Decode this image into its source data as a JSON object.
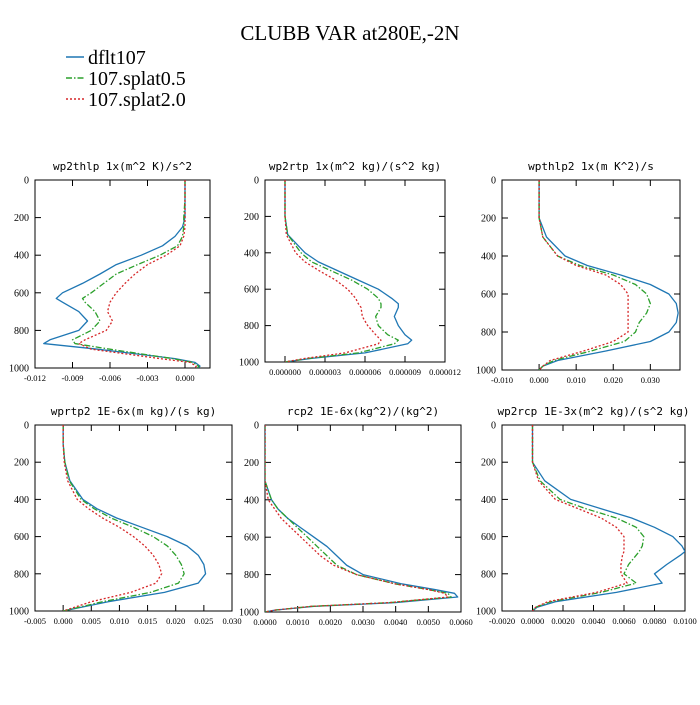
{
  "title": "CLUBB VAR at280E,-2N",
  "legend": [
    {
      "name": "dflt107",
      "color": "#1f77b4",
      "dash": "solid"
    },
    {
      "name": "107.splat0.5",
      "color": "#2ca02c",
      "dash": "dashdot"
    },
    {
      "name": "107.splat2.0",
      "color": "#d62728",
      "dash": "dotted"
    }
  ],
  "chart_data": [
    {
      "type": "line",
      "title": "wp2thlp  1x(m^2 K)/s^2",
      "xlim": [
        -0.012,
        0.002
      ],
      "ylim": [
        1000,
        0
      ],
      "xticks": [
        -0.012,
        -0.009,
        -0.006,
        -0.003,
        0.0
      ],
      "xtick_labels": [
        "-0.012",
        "-0.009",
        "-0.006",
        "-0.003",
        "0.000"
      ],
      "yticks": [
        0,
        200,
        400,
        600,
        800,
        1000
      ],
      "y": [
        0,
        100,
        200,
        250,
        300,
        350,
        400,
        450,
        500,
        550,
        600,
        630,
        650,
        700,
        750,
        800,
        850,
        870,
        900,
        950,
        970,
        990,
        1000
      ],
      "series": [
        {
          "name": "dflt107",
          "values": [
            0.0,
            0.0,
            0.0,
            -0.0002,
            -0.0008,
            -0.0018,
            -0.0035,
            -0.0055,
            -0.0068,
            -0.0082,
            -0.0098,
            -0.0103,
            -0.0098,
            -0.0085,
            -0.0078,
            -0.0085,
            -0.0108,
            -0.0113,
            -0.007,
            -0.0008,
            0.0008,
            0.0012,
            0.001
          ]
        },
        {
          "name": "107.splat0.5",
          "values": [
            0.0,
            0.0,
            -0.0001,
            -0.0001,
            -0.0002,
            -0.0006,
            -0.002,
            -0.0038,
            -0.0055,
            -0.0065,
            -0.0075,
            -0.0082,
            -0.008,
            -0.0072,
            -0.0068,
            -0.0075,
            -0.009,
            -0.0088,
            -0.006,
            -0.001,
            0.0006,
            0.0011,
            0.001
          ]
        },
        {
          "name": "107.splat2.0",
          "values": [
            0.0,
            0.0,
            0.0,
            0.0,
            -0.0001,
            -0.0004,
            -0.0015,
            -0.003,
            -0.004,
            -0.0048,
            -0.0055,
            -0.0058,
            -0.006,
            -0.0062,
            -0.0058,
            -0.0063,
            -0.008,
            -0.0085,
            -0.0075,
            -0.002,
            0.0004,
            0.0009,
            0.0008
          ]
        }
      ]
    },
    {
      "type": "line",
      "title": "wp2rtp  1x(m^2 kg)/(s^2 kg)",
      "xlim": [
        -1.5e-06,
        1.2e-05
      ],
      "ylim": [
        1000,
        0
      ],
      "xticks": [
        0.0,
        3e-06,
        6e-06,
        9e-06,
        1.2e-05
      ],
      "xtick_labels": [
        "0.000000",
        "0.000003",
        "0.000006",
        "0.000009",
        "0.000012"
      ],
      "yticks": [
        0,
        200,
        400,
        600,
        800,
        1000
      ],
      "y": [
        0,
        100,
        200,
        300,
        400,
        450,
        500,
        550,
        600,
        650,
        680,
        700,
        750,
        800,
        850,
        880,
        900,
        950,
        980,
        1000
      ],
      "series": [
        {
          "name": "dflt107",
          "values": [
            0.0,
            0.0,
            0.0,
            2e-07,
            1.5e-06,
            2.5e-06,
            4e-06,
            5.5e-06,
            7e-06,
            8e-06,
            8.5e-06,
            8.5e-06,
            8.2e-06,
            8.5e-06,
            9e-06,
            9.5e-06,
            9.2e-06,
            6e-06,
            2e-06,
            0.0
          ]
        },
        {
          "name": "107.splat0.5",
          "values": [
            0.0,
            0.0,
            0.0,
            2e-07,
            1.2e-06,
            2e-06,
            3.5e-06,
            5e-06,
            6.2e-06,
            7e-06,
            7.2e-06,
            7.2e-06,
            6.8e-06,
            7e-06,
            7.7e-06,
            8.5e-06,
            8.2e-06,
            5.5e-06,
            1.8e-06,
            0.0
          ]
        },
        {
          "name": "107.splat2.0",
          "values": [
            0.0,
            0.0,
            0.0,
            1e-07,
            8e-07,
            1.5e-06,
            2.6e-06,
            3.8e-06,
            4.7e-06,
            5.3e-06,
            5.5e-06,
            5.7e-06,
            5.8e-06,
            6.2e-06,
            6.8e-06,
            7.2e-06,
            7e-06,
            4.5e-06,
            1.5e-06,
            0.0
          ]
        }
      ]
    },
    {
      "type": "line",
      "title": "wpthlp2  1x(m K^2)/s",
      "xlim": [
        -0.01,
        0.038
      ],
      "ylim": [
        1000,
        0
      ],
      "xticks": [
        -0.01,
        0.0,
        0.01,
        0.02,
        0.03
      ],
      "xtick_labels": [
        "-0.010",
        "0.000",
        "0.010",
        "0.020",
        "0.030"
      ],
      "yticks": [
        0,
        200,
        400,
        600,
        800,
        1000
      ],
      "y": [
        0,
        100,
        200,
        300,
        400,
        450,
        500,
        550,
        600,
        650,
        700,
        750,
        800,
        850,
        900,
        950,
        980,
        1000
      ],
      "series": [
        {
          "name": "dflt107",
          "values": [
            0.0,
            0.0,
            0.0,
            0.002,
            0.007,
            0.013,
            0.022,
            0.03,
            0.035,
            0.037,
            0.0375,
            0.037,
            0.035,
            0.03,
            0.018,
            0.005,
            0.001,
            0.0
          ]
        },
        {
          "name": "107.splat0.5",
          "values": [
            0.0,
            0.0,
            0.0,
            0.001,
            0.005,
            0.011,
            0.02,
            0.026,
            0.029,
            0.03,
            0.029,
            0.027,
            0.026,
            0.023,
            0.014,
            0.004,
            0.001,
            0.0
          ]
        },
        {
          "name": "107.splat2.0",
          "values": [
            0.0,
            0.0,
            0.0,
            0.001,
            0.005,
            0.01,
            0.018,
            0.022,
            0.024,
            0.024,
            0.024,
            0.024,
            0.024,
            0.02,
            0.012,
            0.003,
            0.001,
            0.0
          ]
        }
      ]
    },
    {
      "type": "line",
      "title": "wprtp2  1E-6x(m kg)/(s kg)",
      "xlim": [
        -0.005,
        0.03
      ],
      "ylim": [
        1000,
        0
      ],
      "xticks": [
        -0.005,
        0.0,
        0.005,
        0.01,
        0.015,
        0.02,
        0.025,
        0.03
      ],
      "xtick_labels": [
        "-0.005",
        "0.000",
        "0.005",
        "0.010",
        "0.015",
        "0.020",
        "0.025",
        "0.030"
      ],
      "yticks": [
        0,
        200,
        400,
        600,
        800,
        1000
      ],
      "y": [
        0,
        100,
        200,
        300,
        400,
        450,
        500,
        550,
        600,
        650,
        700,
        750,
        800,
        850,
        900,
        950,
        1000
      ],
      "series": [
        {
          "name": "dflt107",
          "values": [
            0.0,
            0.0,
            0.0003,
            0.0012,
            0.0035,
            0.006,
            0.0095,
            0.014,
            0.0185,
            0.022,
            0.024,
            0.025,
            0.0253,
            0.024,
            0.018,
            0.008,
            0.0
          ]
        },
        {
          "name": "107.splat0.5",
          "values": [
            0.0,
            0.0,
            0.0003,
            0.0011,
            0.0032,
            0.0055,
            0.0085,
            0.0125,
            0.016,
            0.0185,
            0.02,
            0.021,
            0.0215,
            0.0205,
            0.0155,
            0.007,
            0.0
          ]
        },
        {
          "name": "107.splat2.0",
          "values": [
            0.0,
            0.0,
            0.0002,
            0.0008,
            0.0025,
            0.0045,
            0.007,
            0.01,
            0.0125,
            0.0145,
            0.016,
            0.017,
            0.0175,
            0.0165,
            0.012,
            0.005,
            0.0
          ]
        }
      ]
    },
    {
      "type": "line",
      "title": "rcp2  1E-6x(kg^2)/(kg^2)",
      "xlim": [
        0.0,
        0.006
      ],
      "ylim": [
        1000,
        0
      ],
      "xticks": [
        0.0,
        0.001,
        0.002,
        0.003,
        0.004,
        0.005,
        0.006
      ],
      "xtick_labels": [
        "0.0000",
        "0.0010",
        "0.0020",
        "0.0030",
        "0.0040",
        "0.0050",
        "0.0060"
      ],
      "yticks": [
        0,
        200,
        400,
        600,
        800,
        1000
      ],
      "y": [
        0,
        300,
        400,
        450,
        500,
        550,
        600,
        650,
        700,
        750,
        800,
        850,
        880,
        900,
        920,
        950,
        970,
        990,
        1000
      ],
      "series": [
        {
          "name": "dflt107",
          "values": [
            0.0,
            0.0,
            0.0002,
            0.0004,
            0.0007,
            0.0011,
            0.0015,
            0.0019,
            0.0022,
            0.0025,
            0.003,
            0.0042,
            0.0052,
            0.0058,
            0.0059,
            0.004,
            0.0015,
            0.0003,
            0.0
          ]
        },
        {
          "name": "107.splat0.5",
          "values": [
            0.0,
            0.0,
            0.0002,
            0.0004,
            0.0007,
            0.001,
            0.0013,
            0.0016,
            0.0019,
            0.0022,
            0.0028,
            0.004,
            0.005,
            0.0056,
            0.0057,
            0.0038,
            0.0014,
            0.0003,
            0.0
          ]
        },
        {
          "name": "107.splat2.0",
          "values": [
            0.0,
            0.0,
            0.0001,
            0.0003,
            0.0005,
            0.0008,
            0.0011,
            0.0014,
            0.0017,
            0.0021,
            0.0028,
            0.004,
            0.005,
            0.0055,
            0.0056,
            0.0038,
            0.0014,
            0.0003,
            0.0
          ]
        }
      ]
    },
    {
      "type": "line",
      "title": "wp2rcp  1E-3x(m^2 kg)/(s^2 kg)",
      "xlim": [
        -0.002,
        0.01
      ],
      "ylim": [
        1000,
        0
      ],
      "xticks": [
        -0.002,
        0.0,
        0.002,
        0.004,
        0.006,
        0.008,
        0.01
      ],
      "xtick_labels": [
        "-0.0020",
        "0.0000",
        "0.0020",
        "0.0040",
        "0.0060",
        "0.0080",
        "0.0100"
      ],
      "yticks": [
        0,
        200,
        400,
        600,
        800,
        1000
      ],
      "y": [
        0,
        200,
        300,
        400,
        450,
        500,
        550,
        600,
        650,
        680,
        700,
        750,
        800,
        850,
        900,
        950,
        980,
        1000
      ],
      "series": [
        {
          "name": "dflt107",
          "values": [
            0.0,
            0.0,
            0.0008,
            0.0025,
            0.0045,
            0.0065,
            0.008,
            0.0092,
            0.0098,
            0.01,
            0.0097,
            0.0088,
            0.008,
            0.0085,
            0.0055,
            0.0015,
            0.0003,
            0.0
          ]
        },
        {
          "name": "107.splat0.5",
          "values": [
            0.0,
            0.0,
            0.0005,
            0.0018,
            0.0035,
            0.0055,
            0.0068,
            0.0073,
            0.0072,
            0.007,
            0.0068,
            0.0063,
            0.006,
            0.0068,
            0.0045,
            0.0012,
            0.0002,
            0.0
          ]
        },
        {
          "name": "107.splat2.0",
          "values": [
            0.0,
            0.0,
            0.0004,
            0.0015,
            0.003,
            0.0045,
            0.0055,
            0.006,
            0.006,
            0.006,
            0.0059,
            0.0058,
            0.0058,
            0.0062,
            0.0042,
            0.001,
            0.0002,
            0.0
          ]
        }
      ]
    }
  ]
}
